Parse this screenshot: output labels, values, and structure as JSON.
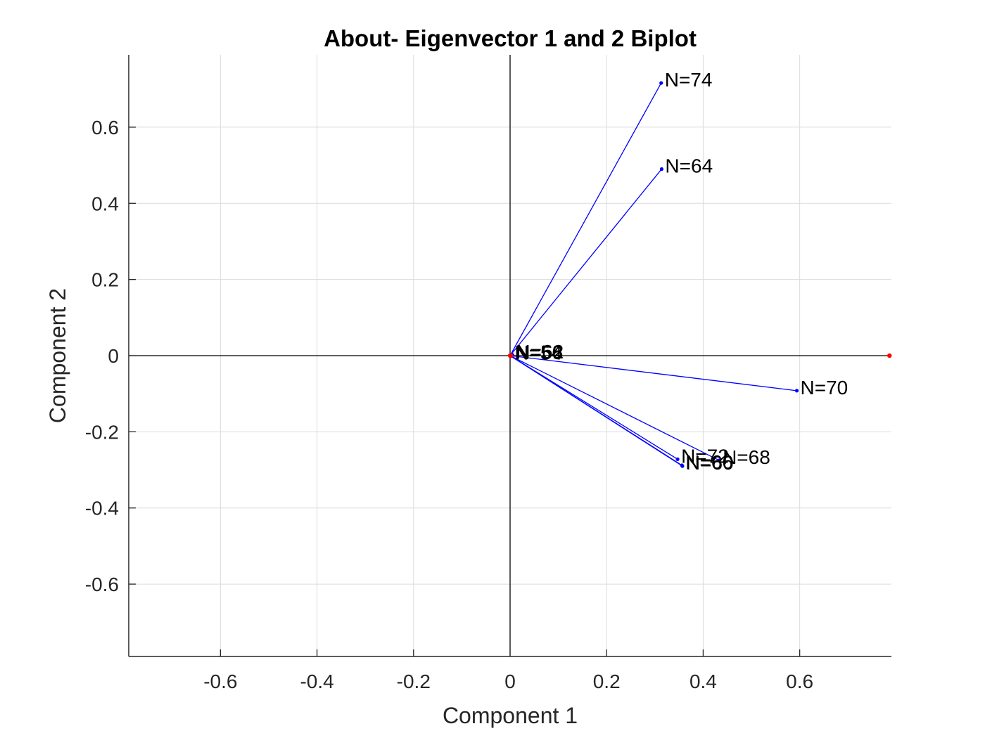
{
  "chart_data": {
    "type": "scatter",
    "subtype": "biplot",
    "title": "About- Eigenvector 1 and 2 Biplot",
    "xlabel": "Component 1",
    "ylabel": "Component 2",
    "xlim": [
      -0.79,
      0.79
    ],
    "ylim": [
      -0.79,
      0.79
    ],
    "xticks": [
      -0.6,
      -0.4,
      -0.2,
      0,
      0.2,
      0.4,
      0.6
    ],
    "yticks": [
      -0.6,
      -0.4,
      -0.2,
      0,
      0.2,
      0.4,
      0.6
    ],
    "grid": true,
    "colors": {
      "vectors": "#0000ff",
      "observations": "#ff0000",
      "zero_lines": "#000000",
      "grid": "#dcdcdc"
    },
    "vectors": [
      {
        "label": "N=74",
        "x": 0.313,
        "y": 0.716
      },
      {
        "label": "N=64",
        "x": 0.314,
        "y": 0.49
      },
      {
        "label": "N=70",
        "x": 0.594,
        "y": -0.092
      },
      {
        "label": "N=72",
        "x": 0.347,
        "y": -0.272
      },
      {
        "label": "N=68",
        "x": 0.433,
        "y": -0.275
      },
      {
        "label": "N=66",
        "x": 0.356,
        "y": -0.288
      },
      {
        "label": "N=60",
        "x": 0.357,
        "y": -0.29
      },
      {
        "label": "N=62",
        "x": 0.005,
        "y": 0.002
      },
      {
        "label": "N=58",
        "x": 0.004,
        "y": 0.001
      },
      {
        "label": "N=56",
        "x": 0.003,
        "y": 0.0
      },
      {
        "label": "N=54",
        "x": 0.002,
        "y": -0.001
      }
    ],
    "observations": [
      {
        "x": 0.0,
        "y": 0.0
      },
      {
        "x": 0.002,
        "y": 0.0
      },
      {
        "x": 0.786,
        "y": 0.0
      }
    ]
  }
}
